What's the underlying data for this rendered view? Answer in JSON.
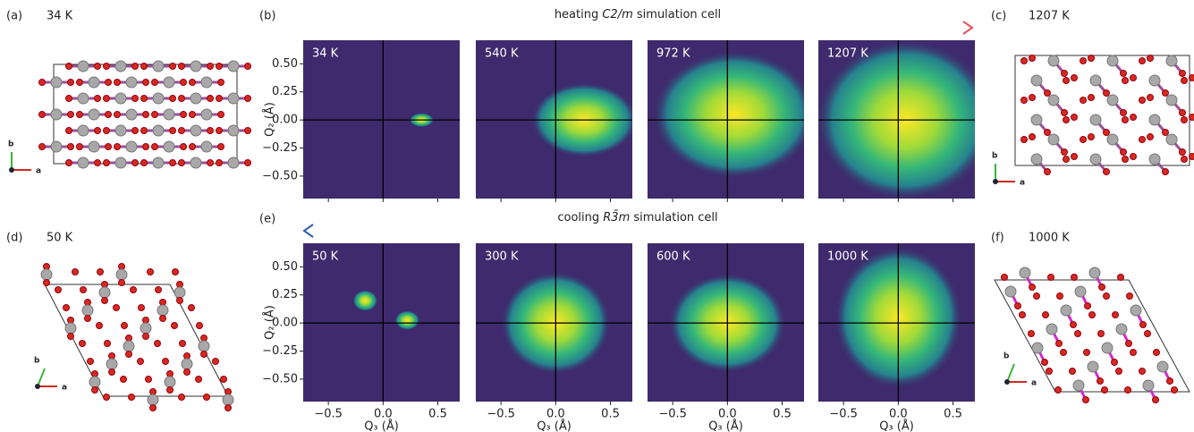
{
  "structures": [
    {
      "label": "(a)",
      "temperature": "34 K"
    },
    {
      "label": "(c)",
      "temperature": "1207 K"
    },
    {
      "label": "(d)",
      "temperature": "50 K"
    },
    {
      "label": "(f)",
      "temperature": "1000 K"
    }
  ],
  "lattice_axes": {
    "a": "a",
    "b": "b"
  },
  "rows": [
    {
      "label": "(b)",
      "caption": [
        "heating ",
        "C2/m",
        " simulation cell"
      ],
      "plots": [
        "34 K",
        "540 K",
        "972 K",
        "1207 K"
      ]
    },
    {
      "label": "(e)",
      "caption": [
        "cooling ",
        "R3̄m",
        " simulation cell"
      ],
      "plots": [
        "50 K",
        "300 K",
        "600 K",
        "1000 K"
      ]
    }
  ],
  "axes": {
    "xlabel": "Q₃ (Å)",
    "ylabel": "Q₂ (Å)",
    "xlim": [
      -0.73,
      0.7
    ],
    "ylim": [
      -0.7,
      0.71
    ],
    "xticks": [
      {
        "value": -0.5,
        "label": "−0.5"
      },
      {
        "value": 0,
        "label": "0.0"
      },
      {
        "value": 0.5,
        "label": "0.5"
      }
    ],
    "yticks": [
      {
        "value": -0.5,
        "label": "−0.50"
      },
      {
        "value": -0.25,
        "label": "−0.25"
      },
      {
        "value": 0,
        "label": "0.00"
      },
      {
        "value": 0.25,
        "label": "0.25"
      },
      {
        "value": 0.5,
        "label": "0.50"
      }
    ]
  }
}
